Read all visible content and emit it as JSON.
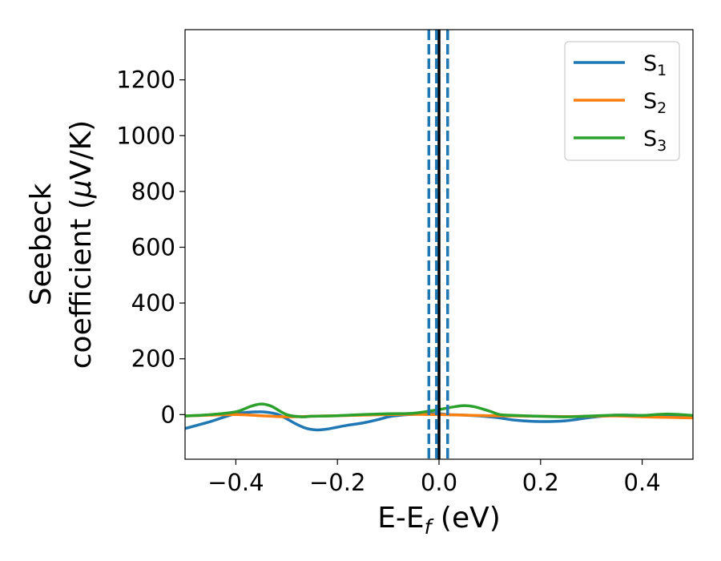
{
  "chart_data": {
    "type": "line",
    "xlabel": {
      "main": "E-E",
      "sub": "f",
      "suffix": " (eV)"
    },
    "ylabel": {
      "line1": "Seebeck",
      "line2_prefix": "coefficient  (",
      "mu": "μ",
      "line2_suffix": "V/K)"
    },
    "xlim": [
      -0.5,
      0.5
    ],
    "ylim": [
      -160,
      1380
    ],
    "x_ticks": [
      -0.4,
      -0.2,
      0.0,
      0.2,
      0.4
    ],
    "x_tick_labels": [
      "−0.4",
      "−0.2",
      "0.0",
      "0.2",
      "0.4"
    ],
    "y_ticks": [
      0,
      200,
      400,
      600,
      800,
      1000,
      1200
    ],
    "y_tick_labels": [
      "0",
      "200",
      "400",
      "600",
      "800",
      "1000",
      "1200"
    ],
    "grid": false,
    "legend_position": "top-right",
    "vertical_lines": [
      {
        "x": 0.0,
        "style": "solid",
        "color": "#000000"
      },
      {
        "x": -0.02,
        "style": "dashed",
        "color": "#1f77b4"
      },
      {
        "x": -0.005,
        "style": "dashed",
        "color": "#1f77b4"
      },
      {
        "x": 0.017,
        "style": "dashed",
        "color": "#1f77b4"
      }
    ],
    "series": [
      {
        "name": "S",
        "sub": "1",
        "color": "#1f77b4",
        "x": [
          -0.5,
          -0.45,
          -0.4,
          -0.35,
          -0.32,
          -0.3,
          -0.28,
          -0.26,
          -0.24,
          -0.22,
          -0.2,
          -0.18,
          -0.15,
          -0.12,
          -0.1,
          -0.08,
          -0.06,
          -0.04,
          -0.02,
          0.0,
          0.02,
          0.05,
          0.08,
          0.1,
          0.12,
          0.15,
          0.2,
          0.25,
          0.3,
          0.35,
          0.4,
          0.45,
          0.5
        ],
        "y": [
          -50,
          -25,
          3,
          10,
          2,
          -15,
          -35,
          -50,
          -55,
          -52,
          -45,
          -38,
          -30,
          -18,
          -8,
          -3,
          0,
          2,
          4,
          3,
          0,
          -2,
          -5,
          -8,
          -12,
          -20,
          -25,
          -22,
          -10,
          -2,
          -3,
          -5,
          -8
        ]
      },
      {
        "name": "S",
        "sub": "2",
        "color": "#ff7f0e",
        "x": [
          -0.5,
          -0.45,
          -0.4,
          -0.35,
          -0.3,
          -0.25,
          -0.2,
          -0.15,
          -0.1,
          -0.05,
          0.0,
          0.05,
          0.1,
          0.15,
          0.2,
          0.25,
          0.3,
          0.35,
          0.4,
          0.45,
          0.5
        ],
        "y": [
          -5,
          -2,
          0,
          -4,
          -8,
          -6,
          -4,
          -2,
          0,
          1,
          0,
          -2,
          -4,
          -5,
          -6,
          -7,
          -6,
          -5,
          -8,
          -10,
          -12
        ]
      },
      {
        "name": "S",
        "sub": "3",
        "color": "#2ca02c",
        "x": [
          -0.5,
          -0.45,
          -0.4,
          -0.37,
          -0.35,
          -0.33,
          -0.3,
          -0.27,
          -0.25,
          -0.2,
          -0.15,
          -0.1,
          -0.05,
          0.0,
          0.03,
          0.05,
          0.07,
          0.1,
          0.12,
          0.15,
          0.2,
          0.25,
          0.3,
          0.35,
          0.4,
          0.45,
          0.5
        ],
        "y": [
          -5,
          0,
          10,
          30,
          38,
          30,
          0,
          -8,
          -6,
          -4,
          0,
          3,
          5,
          18,
          28,
          32,
          28,
          12,
          0,
          -3,
          -6,
          -8,
          -5,
          -2,
          -3,
          2,
          -3
        ]
      }
    ]
  }
}
